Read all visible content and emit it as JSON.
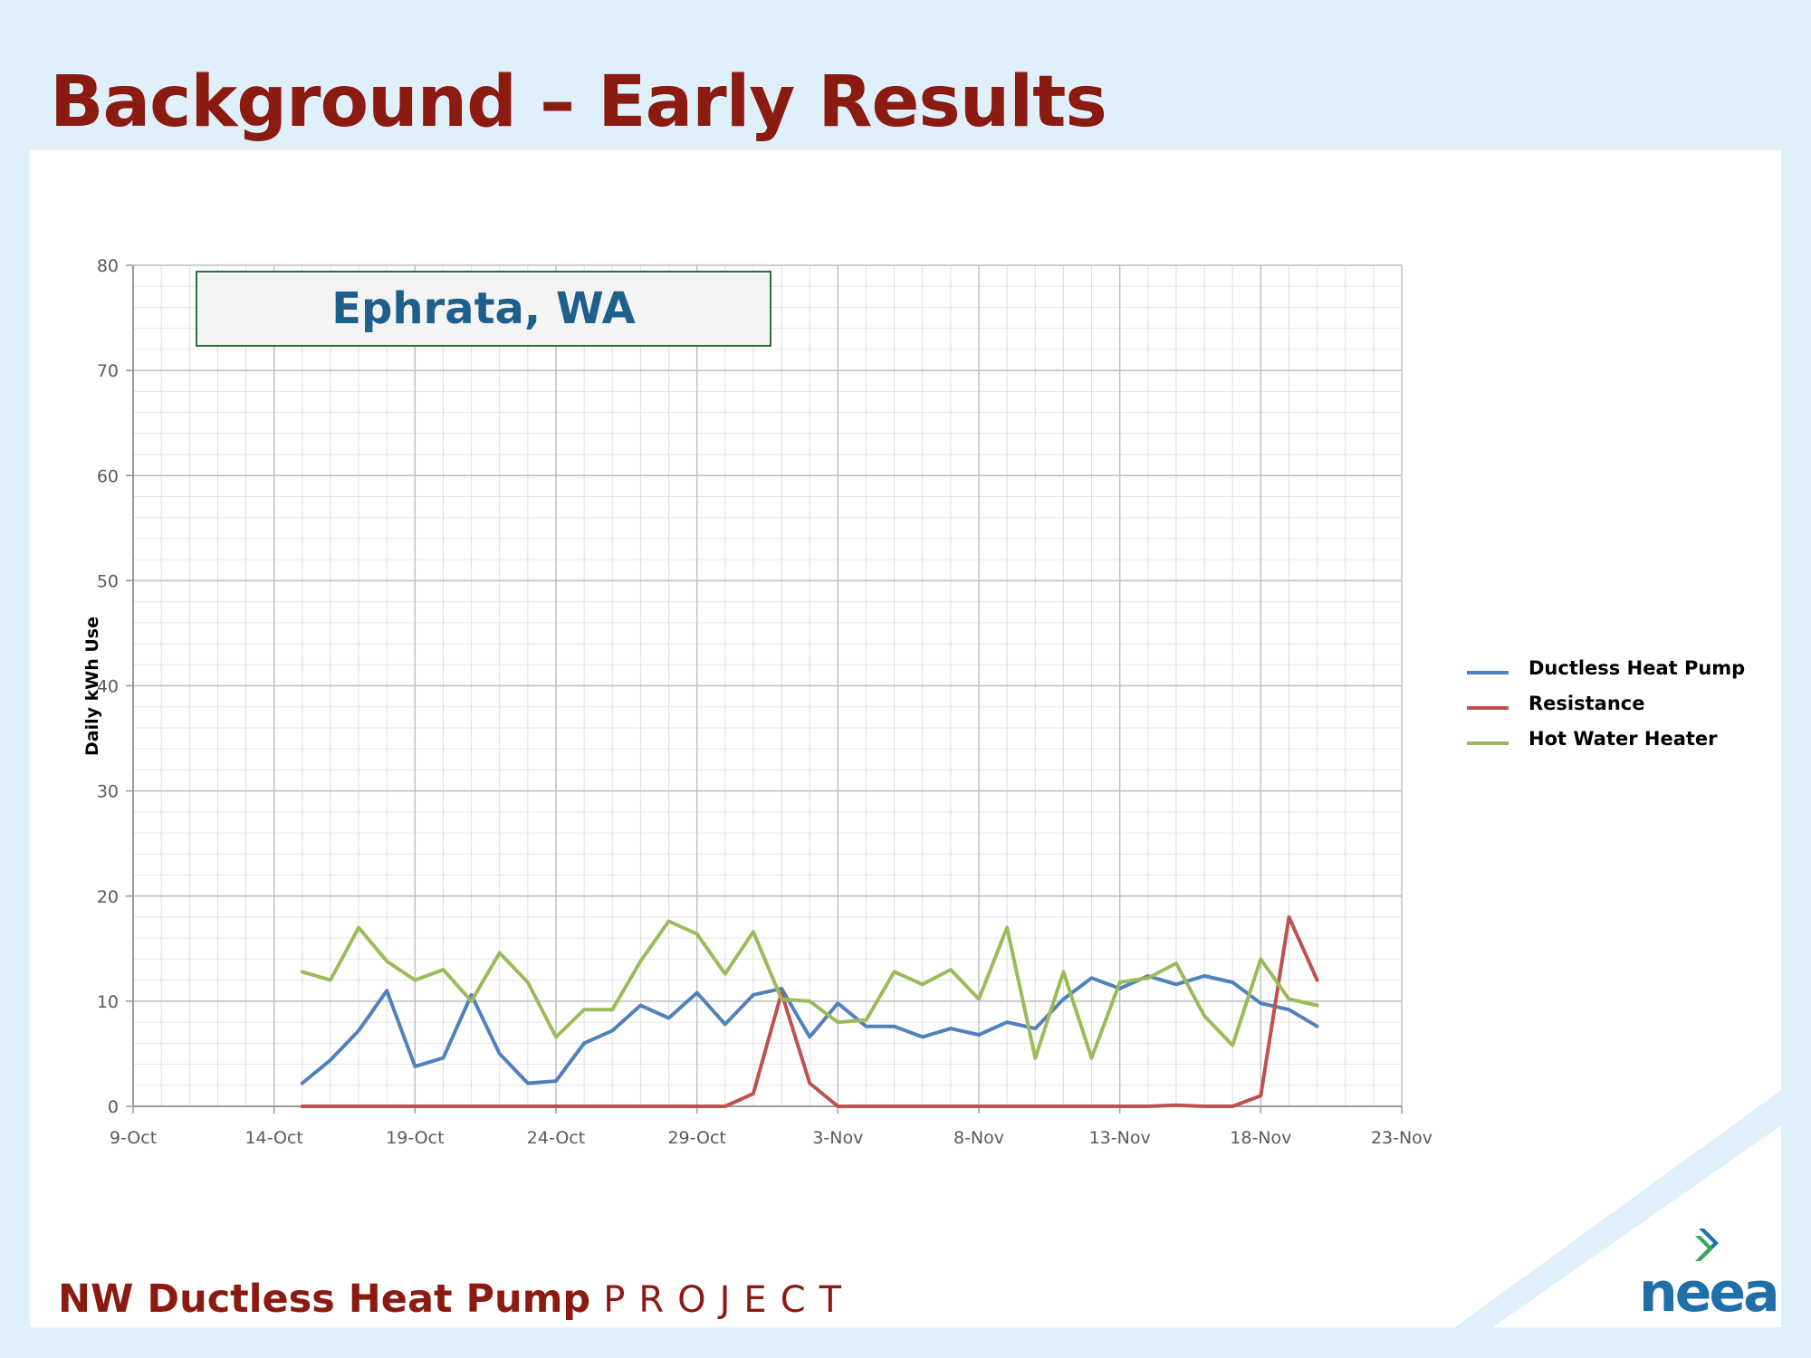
{
  "slide": {
    "title": "Background – Early Results",
    "footer_bold": "NW Ductless Heat Pump",
    "footer_light": "PROJECT",
    "logo_text": "neea"
  },
  "location_label": "Ephrata, WA",
  "chart_data": {
    "type": "line",
    "title": "",
    "xlabel": "",
    "ylabel": "Daily kWh Use",
    "ylim": [
      0,
      80
    ],
    "yticks": [
      0,
      10,
      20,
      30,
      40,
      50,
      60,
      70,
      80
    ],
    "x_tick_labels": [
      "9-Oct",
      "14-Oct",
      "19-Oct",
      "24-Oct",
      "29-Oct",
      "3-Nov",
      "8-Nov",
      "13-Nov",
      "18-Nov",
      "23-Nov"
    ],
    "x": [
      "15-Oct",
      "16-Oct",
      "17-Oct",
      "18-Oct",
      "19-Oct",
      "20-Oct",
      "21-Oct",
      "22-Oct",
      "23-Oct",
      "24-Oct",
      "25-Oct",
      "26-Oct",
      "27-Oct",
      "28-Oct",
      "29-Oct",
      "30-Oct",
      "31-Oct",
      "1-Nov",
      "2-Nov",
      "3-Nov",
      "4-Nov",
      "5-Nov",
      "6-Nov",
      "7-Nov",
      "8-Nov",
      "9-Nov",
      "10-Nov",
      "11-Nov",
      "12-Nov",
      "13-Nov",
      "14-Nov",
      "15-Nov",
      "16-Nov",
      "17-Nov",
      "18-Nov",
      "19-Nov",
      "20-Nov"
    ],
    "grid": true,
    "legend_position": "right",
    "series": [
      {
        "name": "Ductless Heat Pump",
        "color": "#4f81bd",
        "values": [
          2.2,
          4.4,
          7.2,
          11.0,
          3.8,
          4.6,
          10.6,
          5.0,
          2.2,
          2.4,
          6.0,
          7.2,
          9.6,
          8.4,
          10.8,
          7.8,
          10.6,
          11.2,
          6.6,
          9.8,
          7.6,
          7.6,
          6.6,
          7.4,
          6.8,
          8.0,
          7.4,
          10.2,
          12.2,
          11.2,
          12.4,
          11.6,
          12.4,
          11.8,
          9.8,
          9.2,
          7.6
        ]
      },
      {
        "name": "Resistance",
        "color": "#c0504d",
        "values": [
          0,
          0,
          0,
          0,
          0,
          0,
          0,
          0,
          0,
          0,
          0,
          0,
          0,
          0,
          0,
          0,
          1.2,
          10.8,
          2.2,
          0,
          0,
          0,
          0,
          0,
          0,
          0,
          0,
          0,
          0,
          0,
          0,
          0.1,
          0,
          0,
          1.0,
          18.0,
          12.0
        ]
      },
      {
        "name": "Hot Water Heater",
        "color": "#9bbb59",
        "values": [
          12.8,
          12.0,
          17.0,
          13.8,
          12.0,
          13.0,
          10.0,
          14.6,
          11.8,
          6.6,
          9.2,
          9.2,
          13.8,
          17.6,
          16.4,
          12.6,
          16.6,
          10.2,
          10.0,
          8.0,
          8.2,
          12.8,
          11.6,
          13.0,
          10.2,
          17.0,
          4.6,
          12.8,
          4.6,
          11.8,
          12.2,
          13.6,
          8.6,
          5.8,
          14.0,
          10.2,
          9.6
        ]
      }
    ]
  }
}
